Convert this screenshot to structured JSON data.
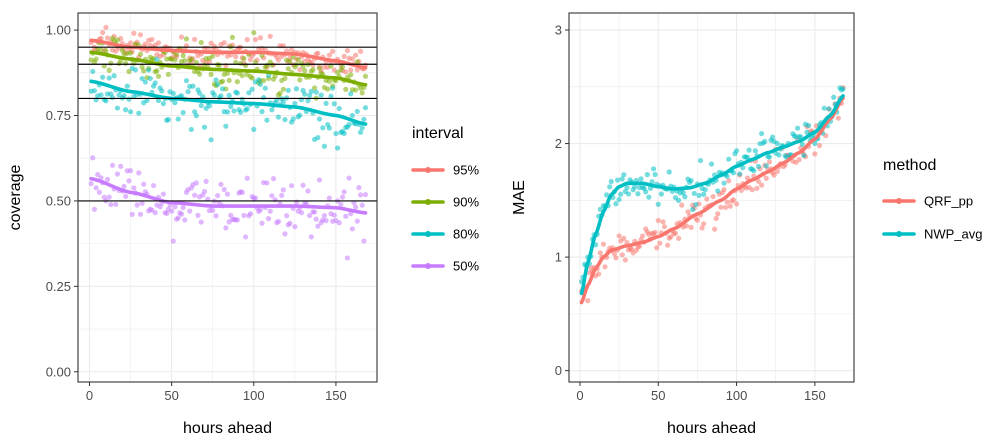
{
  "chart_data": [
    {
      "type": "scatter",
      "title": "",
      "xlabel": "hours ahead",
      "ylabel": "coverage",
      "xlim": [
        -7,
        175
      ],
      "ylim": [
        -0.03,
        1.05
      ],
      "xticks": [
        0,
        50,
        100,
        150
      ],
      "xtick_labels": [
        "0",
        "50",
        "100",
        "150"
      ],
      "yticks": [
        0,
        0.25,
        0.5,
        0.75,
        1.0
      ],
      "ytick_labels": [
        "0.00",
        "0.25",
        "0.50",
        "0.75",
        "1.00"
      ],
      "reference_lines": [
        0.95,
        0.9,
        0.8,
        0.5
      ],
      "grid": true,
      "legend_title": "interval",
      "legend_position": "right",
      "x_range": [
        1,
        168
      ],
      "x_step": 1,
      "series": [
        {
          "name": "95%",
          "color": "#F8766D",
          "smooth_x": [
            1,
            25,
            50,
            75,
            100,
            125,
            150,
            168
          ],
          "smooth_y": [
            0.97,
            0.95,
            0.94,
            0.935,
            0.935,
            0.93,
            0.91,
            0.89
          ],
          "scatter_sd": 0.02
        },
        {
          "name": "90%",
          "color": "#7CAE00",
          "smooth_x": [
            1,
            25,
            50,
            75,
            100,
            125,
            150,
            168
          ],
          "smooth_y": [
            0.935,
            0.915,
            0.895,
            0.885,
            0.88,
            0.87,
            0.86,
            0.84
          ],
          "scatter_sd": 0.03
        },
        {
          "name": "80%",
          "color": "#00BFC4",
          "smooth_x": [
            1,
            25,
            50,
            75,
            100,
            125,
            150,
            168
          ],
          "smooth_y": [
            0.85,
            0.82,
            0.8,
            0.79,
            0.785,
            0.775,
            0.75,
            0.725
          ],
          "scatter_sd": 0.04
        },
        {
          "name": "50%",
          "color": "#C77CFF",
          "smooth_x": [
            1,
            25,
            50,
            75,
            100,
            125,
            150,
            168
          ],
          "smooth_y": [
            0.565,
            0.525,
            0.495,
            0.485,
            0.485,
            0.485,
            0.48,
            0.465
          ],
          "scatter_sd": 0.04
        }
      ]
    },
    {
      "type": "scatter",
      "title": "",
      "xlabel": "hours ahead",
      "ylabel": "MAE",
      "xlim": [
        -7,
        175
      ],
      "ylim": [
        -0.1,
        3.15
      ],
      "xticks": [
        0,
        50,
        100,
        150
      ],
      "xtick_labels": [
        "0",
        "50",
        "100",
        "150"
      ],
      "yticks": [
        0,
        1,
        2,
        3
      ],
      "ytick_labels": [
        "0",
        "1",
        "2",
        "3"
      ],
      "grid": true,
      "legend_title": "method",
      "legend_position": "right",
      "x_range": [
        1,
        168
      ],
      "x_step": 1,
      "series": [
        {
          "name": "QRF_pp",
          "color": "#F8766D",
          "smooth_x": [
            1,
            5,
            10,
            15,
            20,
            30,
            40,
            50,
            60,
            75,
            90,
            100,
            110,
            120,
            130,
            140,
            150,
            160,
            168
          ],
          "smooth_y": [
            0.6,
            0.75,
            0.9,
            1.0,
            1.06,
            1.1,
            1.13,
            1.18,
            1.25,
            1.38,
            1.5,
            1.6,
            1.68,
            1.75,
            1.83,
            1.92,
            2.04,
            2.22,
            2.4
          ],
          "scatter_sd": 0.07
        },
        {
          "name": "NWP_avg",
          "color": "#00BFC4",
          "smooth_x": [
            1,
            5,
            10,
            15,
            20,
            25,
            30,
            40,
            50,
            60,
            70,
            80,
            90,
            100,
            110,
            120,
            130,
            140,
            150,
            160,
            168
          ],
          "smooth_y": [
            0.68,
            0.95,
            1.2,
            1.4,
            1.55,
            1.62,
            1.65,
            1.65,
            1.62,
            1.6,
            1.61,
            1.65,
            1.72,
            1.8,
            1.86,
            1.92,
            1.97,
            2.02,
            2.1,
            2.25,
            2.42
          ],
          "scatter_sd": 0.08
        }
      ]
    }
  ]
}
